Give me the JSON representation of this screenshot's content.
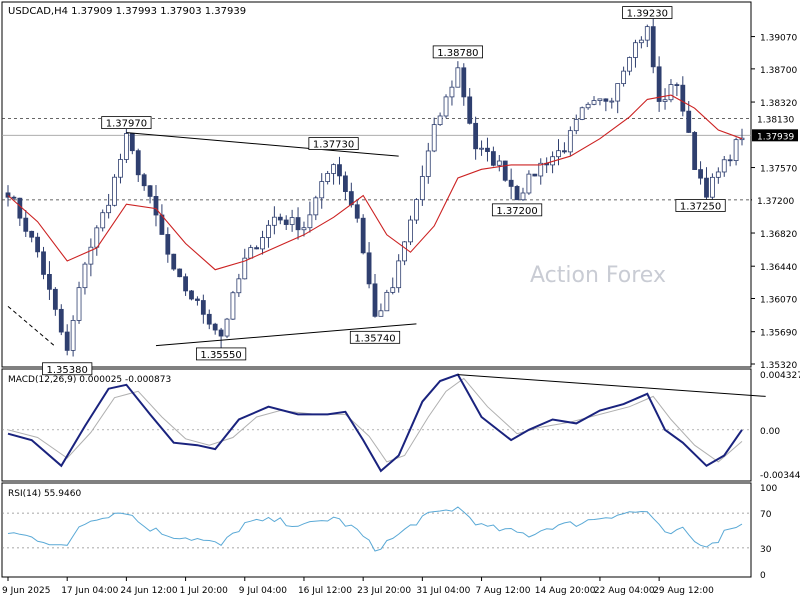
{
  "chart_data": {
    "type": "candlestick",
    "header": {
      "symbol": "USDCAD,H4",
      "values": "1.37909 1.37993 1.37903 1.37939"
    },
    "watermark": "Action Forex",
    "colors": {
      "candle": "#2f3f6f",
      "moving_average": "#cc2222",
      "macd": "#1a237e",
      "signal": "#b0b0b0",
      "rsi": "#5aa9d6",
      "level_line": "#333333"
    },
    "price_axis": {
      "range": [
        1.3532,
        1.3942
      ],
      "ticks": [
        "1.39070",
        "1.38700",
        "1.38320",
        "1.37570",
        "1.37200",
        "1.36820",
        "1.36440",
        "1.36070",
        "1.35690",
        "1.35320"
      ]
    },
    "current_price": "1.37939",
    "horizontal_levels": [
      "1.38130",
      "1.37200"
    ],
    "annotations": [
      {
        "label": "1.35380",
        "index": 10,
        "value": 1.3538
      },
      {
        "label": "1.37970",
        "index": 20,
        "value": 1.3797
      },
      {
        "label": "1.35550",
        "index": 36,
        "value": 1.3555
      },
      {
        "label": "1.37730",
        "index": 55,
        "value": 1.3773
      },
      {
        "label": "1.35740",
        "index": 62,
        "value": 1.3574
      },
      {
        "label": "1.38780",
        "index": 76,
        "value": 1.3878
      },
      {
        "label": "1.37200",
        "index": 86,
        "value": 1.372
      },
      {
        "label": "1.39230",
        "index": 108,
        "value": 1.3923
      },
      {
        "label": "1.37250",
        "index": 117,
        "value": 1.3725
      }
    ],
    "trendlines": [
      {
        "from": {
          "index": 20,
          "value": 1.3797
        },
        "to": {
          "index": 66,
          "value": 1.377
        }
      },
      {
        "from": {
          "index": 25,
          "value": 1.3553
        },
        "to": {
          "index": 69,
          "value": 1.3578
        }
      },
      {
        "from": {
          "index": 0,
          "value": 1.3598
        },
        "to": {
          "index": 8,
          "value": 1.3552
        },
        "dashed": true
      }
    ],
    "close_path": [
      {
        "i": 0,
        "v": 1.373
      },
      {
        "i": 5,
        "v": 1.366
      },
      {
        "i": 10,
        "v": 1.3545
      },
      {
        "i": 13,
        "v": 1.365
      },
      {
        "i": 17,
        "v": 1.372
      },
      {
        "i": 20,
        "v": 1.379
      },
      {
        "i": 25,
        "v": 1.37
      },
      {
        "i": 28,
        "v": 1.3635
      },
      {
        "i": 32,
        "v": 1.36
      },
      {
        "i": 36,
        "v": 1.3565
      },
      {
        "i": 40,
        "v": 1.365
      },
      {
        "i": 45,
        "v": 1.37
      },
      {
        "i": 50,
        "v": 1.369
      },
      {
        "i": 55,
        "v": 1.3765
      },
      {
        "i": 59,
        "v": 1.37
      },
      {
        "i": 62,
        "v": 1.3585
      },
      {
        "i": 65,
        "v": 1.362
      },
      {
        "i": 69,
        "v": 1.372
      },
      {
        "i": 72,
        "v": 1.38
      },
      {
        "i": 76,
        "v": 1.387
      },
      {
        "i": 79,
        "v": 1.378
      },
      {
        "i": 83,
        "v": 1.376
      },
      {
        "i": 86,
        "v": 1.3725
      },
      {
        "i": 90,
        "v": 1.376
      },
      {
        "i": 94,
        "v": 1.378
      },
      {
        "i": 97,
        "v": 1.382
      },
      {
        "i": 102,
        "v": 1.384
      },
      {
        "i": 105,
        "v": 1.389
      },
      {
        "i": 108,
        "v": 1.3915
      },
      {
        "i": 110,
        "v": 1.383
      },
      {
        "i": 113,
        "v": 1.3855
      },
      {
        "i": 116,
        "v": 1.376
      },
      {
        "i": 118,
        "v": 1.373
      },
      {
        "i": 121,
        "v": 1.376
      },
      {
        "i": 124,
        "v": 1.3795
      }
    ],
    "ma_path": [
      {
        "i": 0,
        "v": 1.3725
      },
      {
        "i": 5,
        "v": 1.3695
      },
      {
        "i": 10,
        "v": 1.365
      },
      {
        "i": 15,
        "v": 1.3665
      },
      {
        "i": 20,
        "v": 1.3715
      },
      {
        "i": 25,
        "v": 1.371
      },
      {
        "i": 30,
        "v": 1.367
      },
      {
        "i": 35,
        "v": 1.364
      },
      {
        "i": 40,
        "v": 1.365
      },
      {
        "i": 45,
        "v": 1.3665
      },
      {
        "i": 50,
        "v": 1.368
      },
      {
        "i": 55,
        "v": 1.37
      },
      {
        "i": 60,
        "v": 1.3725
      },
      {
        "i": 64,
        "v": 1.368
      },
      {
        "i": 68,
        "v": 1.366
      },
      {
        "i": 72,
        "v": 1.369
      },
      {
        "i": 76,
        "v": 1.3745
      },
      {
        "i": 80,
        "v": 1.3755
      },
      {
        "i": 85,
        "v": 1.376
      },
      {
        "i": 90,
        "v": 1.376
      },
      {
        "i": 95,
        "v": 1.377
      },
      {
        "i": 100,
        "v": 1.379
      },
      {
        "i": 105,
        "v": 1.3815
      },
      {
        "i": 108,
        "v": 1.3835
      },
      {
        "i": 112,
        "v": 1.384
      },
      {
        "i": 116,
        "v": 1.3825
      },
      {
        "i": 120,
        "v": 1.38
      },
      {
        "i": 124,
        "v": 1.379
      }
    ],
    "macd": {
      "label": "MACD(12,26,9) 0.000025 -0.000873",
      "range": [
        -0.00375,
        0.0045
      ],
      "ticks": [
        "0.004327",
        "0.00",
        "-0.003444"
      ],
      "main_path": [
        {
          "i": 0,
          "v": -0.0003
        },
        {
          "i": 4,
          "v": -0.0008
        },
        {
          "i": 9,
          "v": -0.0028
        },
        {
          "i": 13,
          "v": 0.0003
        },
        {
          "i": 17,
          "v": 0.0032
        },
        {
          "i": 20,
          "v": 0.0035
        },
        {
          "i": 24,
          "v": 0.0012
        },
        {
          "i": 28,
          "v": -0.001
        },
        {
          "i": 32,
          "v": -0.0012
        },
        {
          "i": 35,
          "v": -0.0015
        },
        {
          "i": 39,
          "v": 0.0008
        },
        {
          "i": 44,
          "v": 0.0018
        },
        {
          "i": 49,
          "v": 0.0012
        },
        {
          "i": 54,
          "v": 0.0012
        },
        {
          "i": 57,
          "v": 0.0014
        },
        {
          "i": 60,
          "v": -0.0008
        },
        {
          "i": 63,
          "v": -0.0032
        },
        {
          "i": 66,
          "v": -0.002
        },
        {
          "i": 70,
          "v": 0.0022
        },
        {
          "i": 73,
          "v": 0.0038
        },
        {
          "i": 76,
          "v": 0.0043
        },
        {
          "i": 80,
          "v": 0.001
        },
        {
          "i": 85,
          "v": -0.0008
        },
        {
          "i": 88,
          "v": 0.0
        },
        {
          "i": 92,
          "v": 0.0008
        },
        {
          "i": 96,
          "v": 0.0005
        },
        {
          "i": 100,
          "v": 0.0015
        },
        {
          "i": 104,
          "v": 0.002
        },
        {
          "i": 108,
          "v": 0.0028
        },
        {
          "i": 111,
          "v": 0.0
        },
        {
          "i": 114,
          "v": -0.001
        },
        {
          "i": 118,
          "v": -0.0028
        },
        {
          "i": 121,
          "v": -0.002
        },
        {
          "i": 124,
          "v": 0.0
        }
      ],
      "signal_path": [
        {
          "i": 0,
          "v": 0.0
        },
        {
          "i": 5,
          "v": -0.0006
        },
        {
          "i": 10,
          "v": -0.0022
        },
        {
          "i": 14,
          "v": -0.0002
        },
        {
          "i": 18,
          "v": 0.0025
        },
        {
          "i": 22,
          "v": 0.003
        },
        {
          "i": 26,
          "v": 0.001
        },
        {
          "i": 30,
          "v": -0.0007
        },
        {
          "i": 34,
          "v": -0.0012
        },
        {
          "i": 38,
          "v": -0.0006
        },
        {
          "i": 42,
          "v": 0.001
        },
        {
          "i": 46,
          "v": 0.0015
        },
        {
          "i": 52,
          "v": 0.0012
        },
        {
          "i": 57,
          "v": 0.0012
        },
        {
          "i": 61,
          "v": -0.0005
        },
        {
          "i": 64,
          "v": -0.0025
        },
        {
          "i": 67,
          "v": -0.002
        },
        {
          "i": 71,
          "v": 0.001
        },
        {
          "i": 74,
          "v": 0.003
        },
        {
          "i": 77,
          "v": 0.004
        },
        {
          "i": 81,
          "v": 0.0018
        },
        {
          "i": 86,
          "v": -0.0003
        },
        {
          "i": 90,
          "v": 0.0002
        },
        {
          "i": 95,
          "v": 0.0006
        },
        {
          "i": 100,
          "v": 0.0012
        },
        {
          "i": 105,
          "v": 0.0018
        },
        {
          "i": 109,
          "v": 0.0026
        },
        {
          "i": 112,
          "v": 0.0008
        },
        {
          "i": 116,
          "v": -0.0012
        },
        {
          "i": 120,
          "v": -0.0025
        },
        {
          "i": 124,
          "v": -0.0009
        }
      ],
      "trendline": {
        "from": {
          "i": 76,
          "v": 0.0043
        },
        "to": {
          "i": 128,
          "v": 0.0026
        }
      }
    },
    "rsi": {
      "label": "RSI(14) 55.9460",
      "range": [
        0,
        100
      ],
      "ticks": [
        "100",
        "70",
        "30",
        "0"
      ],
      "levels": [
        70,
        30
      ],
      "path": [
        {
          "i": 0,
          "v": 48
        },
        {
          "i": 4,
          "v": 42
        },
        {
          "i": 8,
          "v": 35
        },
        {
          "i": 10,
          "v": 30
        },
        {
          "i": 12,
          "v": 55
        },
        {
          "i": 15,
          "v": 65
        },
        {
          "i": 18,
          "v": 70
        },
        {
          "i": 20,
          "v": 72
        },
        {
          "i": 23,
          "v": 55
        },
        {
          "i": 27,
          "v": 45
        },
        {
          "i": 32,
          "v": 40
        },
        {
          "i": 36,
          "v": 33
        },
        {
          "i": 40,
          "v": 58
        },
        {
          "i": 45,
          "v": 62
        },
        {
          "i": 50,
          "v": 55
        },
        {
          "i": 55,
          "v": 65
        },
        {
          "i": 59,
          "v": 50
        },
        {
          "i": 62,
          "v": 28
        },
        {
          "i": 66,
          "v": 45
        },
        {
          "i": 70,
          "v": 65
        },
        {
          "i": 74,
          "v": 73
        },
        {
          "i": 76,
          "v": 76
        },
        {
          "i": 80,
          "v": 55
        },
        {
          "i": 84,
          "v": 50
        },
        {
          "i": 88,
          "v": 45
        },
        {
          "i": 92,
          "v": 55
        },
        {
          "i": 96,
          "v": 58
        },
        {
          "i": 100,
          "v": 65
        },
        {
          "i": 104,
          "v": 70
        },
        {
          "i": 108,
          "v": 72
        },
        {
          "i": 111,
          "v": 45
        },
        {
          "i": 114,
          "v": 50
        },
        {
          "i": 117,
          "v": 32
        },
        {
          "i": 120,
          "v": 40
        },
        {
          "i": 122,
          "v": 55
        },
        {
          "i": 124,
          "v": 56
        }
      ]
    },
    "x_axis": {
      "ticks": [
        {
          "label": "9 Jun 2025",
          "index": 0
        },
        {
          "label": "17 Jun 04:00",
          "index": 10
        },
        {
          "label": "24 Jun 12:00",
          "index": 20
        },
        {
          "label": "1 Jul 20:00",
          "index": 30
        },
        {
          "label": "9 Jul 04:00",
          "index": 40
        },
        {
          "label": "16 Jul 12:00",
          "index": 50
        },
        {
          "label": "23 Jul 20:00",
          "index": 60
        },
        {
          "label": "31 Jul 04:00",
          "index": 70
        },
        {
          "label": "7 Aug 12:00",
          "index": 80
        },
        {
          "label": "14 Aug 20:00",
          "index": 90
        },
        {
          "label": "22 Aug 04:00",
          "index": 100
        },
        {
          "label": "29 Aug 12:00",
          "index": 110
        }
      ]
    }
  }
}
